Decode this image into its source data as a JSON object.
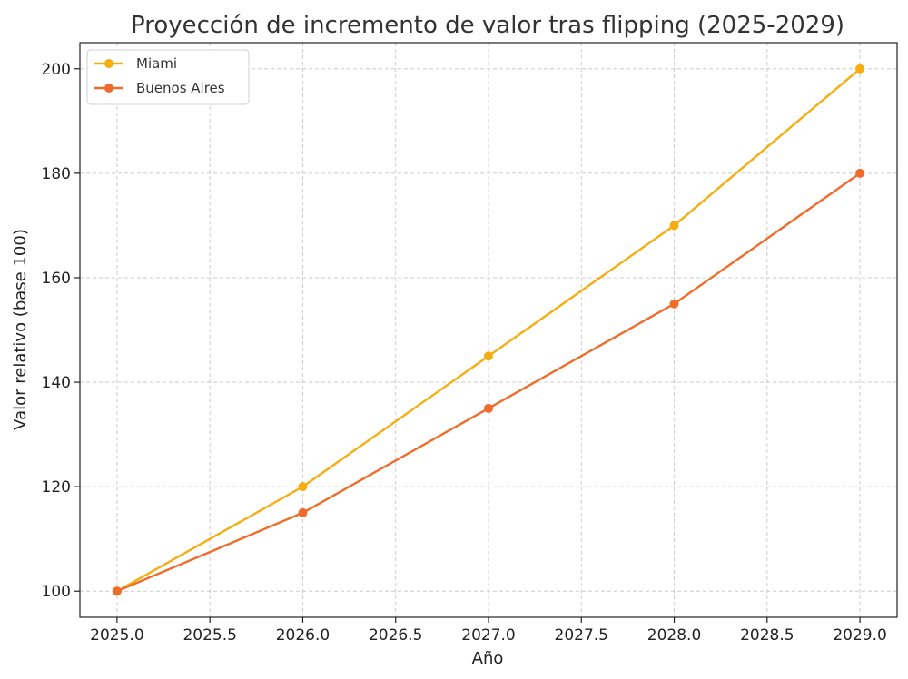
{
  "chart_data": {
    "type": "line",
    "title": "Proyección de incremento de valor tras flipping (2025-2029)",
    "xlabel": "Año",
    "ylabel": "Valor relativo (base 100)",
    "x": [
      2025,
      2026,
      2027,
      2028,
      2029
    ],
    "xlim": [
      2024.8,
      2029.2
    ],
    "ylim": [
      95,
      205
    ],
    "x_ticks": [
      "2025.0",
      "2025.5",
      "2026.0",
      "2026.5",
      "2027.0",
      "2027.5",
      "2028.0",
      "2028.5",
      "2029.0"
    ],
    "x_tick_values": [
      2025,
      2025.5,
      2026,
      2026.5,
      2027,
      2027.5,
      2028,
      2028.5,
      2029
    ],
    "y_ticks": [
      "100",
      "120",
      "140",
      "160",
      "180",
      "200"
    ],
    "y_tick_values": [
      100,
      120,
      140,
      160,
      180,
      200
    ],
    "grid": true,
    "legend_position": "top-left",
    "series": [
      {
        "name": "Miami",
        "color": "#f5ad10",
        "values": [
          100,
          120,
          145,
          170,
          200
        ]
      },
      {
        "name": "Buenos Aires",
        "color": "#ef6c2a",
        "values": [
          100,
          115,
          135,
          155,
          180
        ]
      }
    ]
  }
}
